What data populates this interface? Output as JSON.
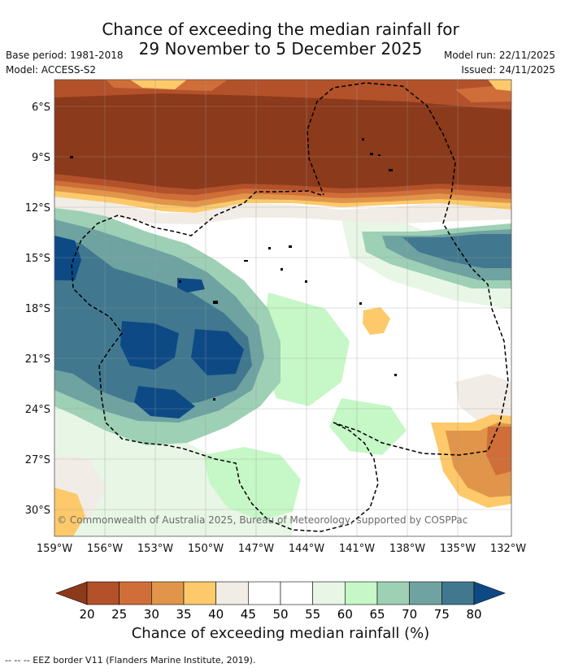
{
  "title_line1": "Chance of exceeding the median rainfall for",
  "title_line2": "29 November to 5 December 2025",
  "base_period": "Base period: 1981-2018",
  "model": "Model: ACCESS-S2",
  "model_run": "Model run: 22/11/2025",
  "issued": "Issued: 24/11/2025",
  "copyright": "© Commonwealth of Australia 2025, Bureau of Meteorology, supported by COSPPac",
  "lat_labels": [
    "6°S",
    "9°S",
    "12°S",
    "15°S",
    "18°S",
    "21°S",
    "24°S",
    "27°S",
    "30°S"
  ],
  "lon_labels": [
    "159°W",
    "156°W",
    "153°W",
    "150°W",
    "147°W",
    "144°W",
    "141°W",
    "138°W",
    "135°W",
    "132°W"
  ],
  "colorbar": {
    "caption": "Chance of exceeding median rainfall (%)",
    "ticks": [
      "20",
      "25",
      "30",
      "35",
      "40",
      "45",
      "50",
      "55",
      "60",
      "65",
      "70",
      "75",
      "80"
    ],
    "colors": [
      "#8c3a1c",
      "#b3512a",
      "#cf6e38",
      "#e0954a",
      "#fdc96a",
      "#f1ece6",
      "#ffffff",
      "#ffffff",
      "#e8f6e6",
      "#c6f7c6",
      "#9ed0b6",
      "#6fa3a1",
      "#41788f",
      "#0d4a85"
    ]
  },
  "legend_footer": "--  --  -- EEZ border V11 (Flanders Marine Institute, 2019)."
}
